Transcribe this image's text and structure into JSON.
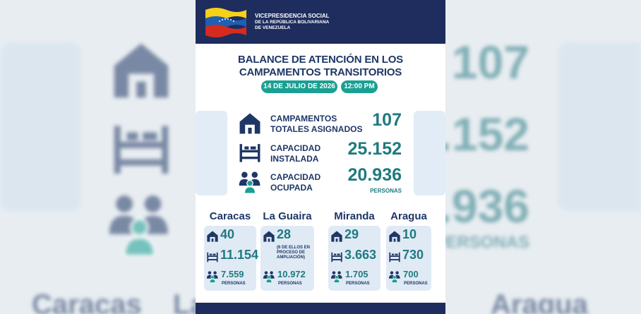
{
  "header": {
    "org_lines": [
      "VICEPRESIDENCIA SOCIAL",
      "DE LA REPÚBLICA BOLIVARIANA",
      "DE VENEZUELA"
    ]
  },
  "title_lines": [
    "BALANCE DE ATENCIÓN EN LOS",
    "CAMPAMENTOS TRANSITORIOS"
  ],
  "date": "14 DE JULIO DE 2026",
  "time": "12:00 PM",
  "stats": [
    {
      "label_lines": [
        "CAMPAMENTOS",
        "TOTALES ASIGNADOS"
      ],
      "value": "107"
    },
    {
      "label_lines": [
        "CAPACIDAD",
        "INSTALADA"
      ],
      "value": "25.152"
    },
    {
      "label_lines": [
        "CAPACIDAD",
        "OCUPADA"
      ],
      "value": "20.936",
      "unit": "PERSONAS"
    }
  ],
  "regions": [
    {
      "name": "Caracas",
      "camps": "40",
      "capacity": "11.154",
      "occupied": "7.559",
      "unit": "PERSONAS"
    },
    {
      "name": "La Guaira",
      "camps": "28",
      "note": "(6 DE ELLOS EN PROCESO DE AMPLIACIÓN)",
      "occupied": "10.972",
      "unit": "PERSONAS"
    },
    {
      "name": "Miranda",
      "camps": "29",
      "capacity": "3.663",
      "occupied": "1.705",
      "unit": "PERSONAS"
    },
    {
      "name": "Aragua",
      "camps": "10",
      "capacity": "730",
      "occupied": "700",
      "unit": "PERSONAS"
    }
  ]
}
